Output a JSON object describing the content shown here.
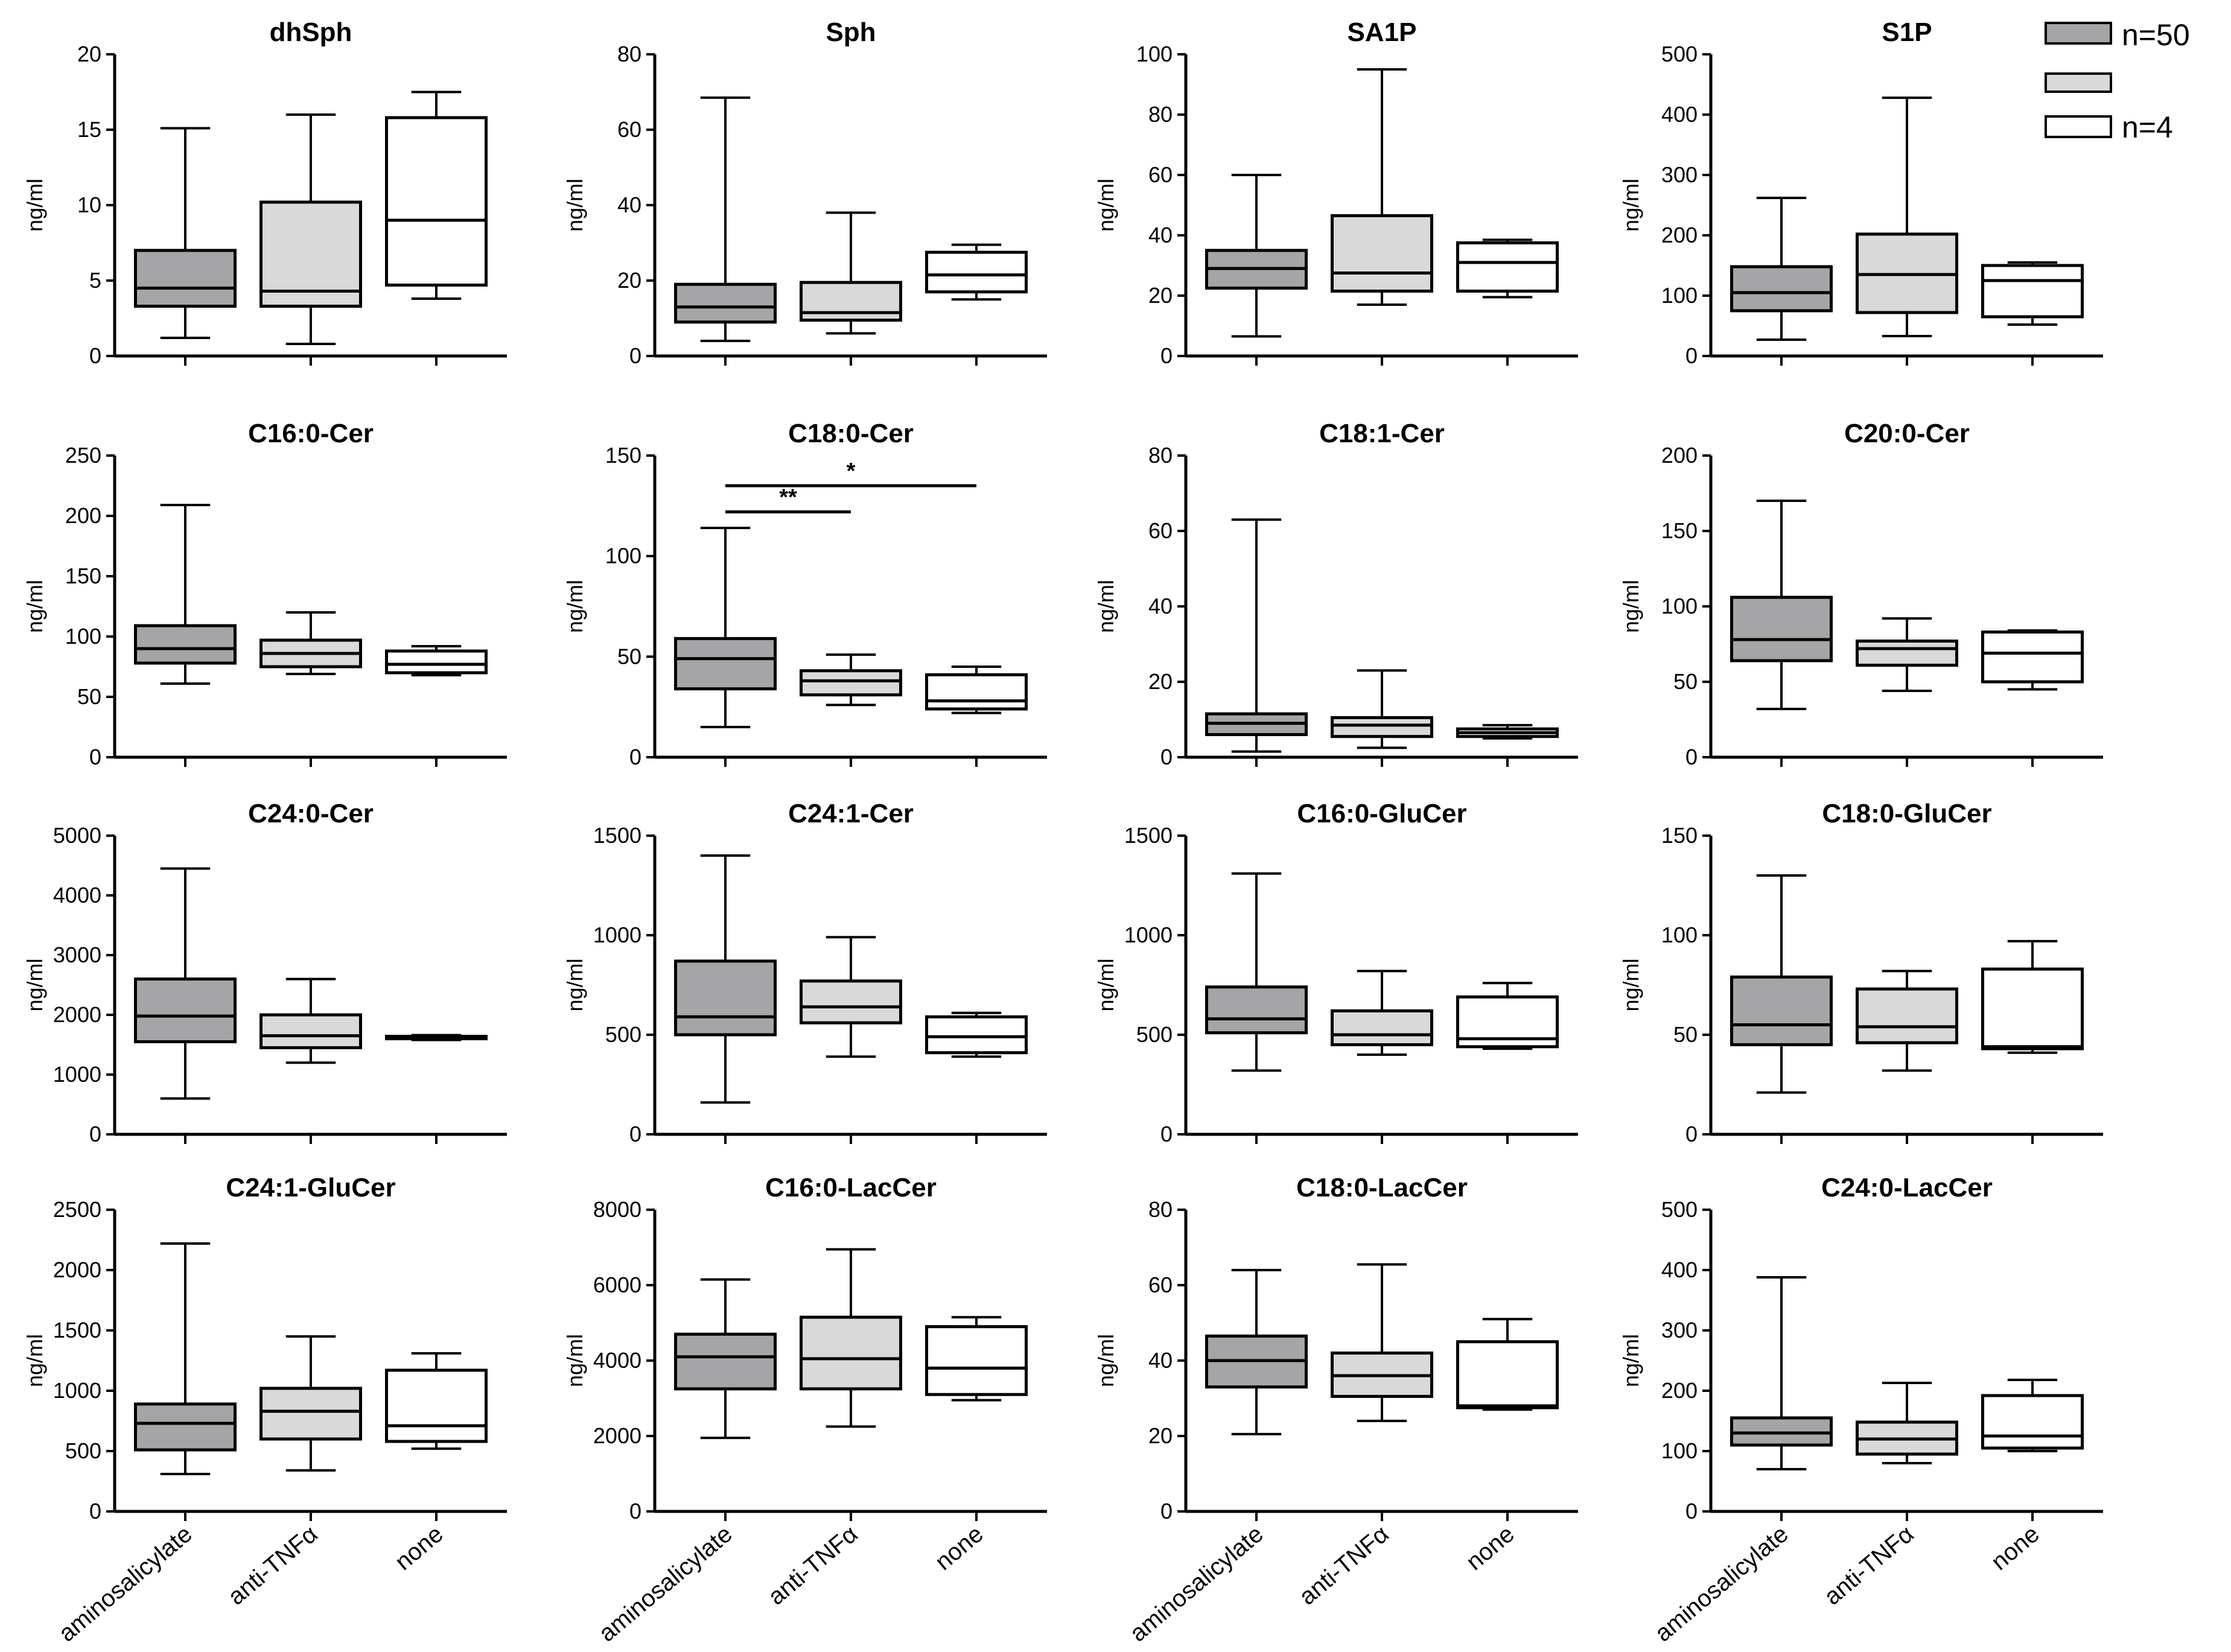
{
  "legend": [
    {
      "label": "n=50",
      "fill": "#a5a5a7"
    },
    {
      "label": "",
      "fill": "#d9d9d9"
    },
    {
      "label": "n=4",
      "fill": "#ffffff"
    }
  ],
  "colors": {
    "aminosalicylate": "#a5a5a7",
    "anti_tnf": "#d9d9d9",
    "none": "#ffffff",
    "stroke": "#000000"
  },
  "chart_data": [
    {
      "type": "box",
      "title": "dhSph",
      "ylabel": "ng/ml",
      "ylim": [
        0,
        20
      ],
      "yticks": [
        0,
        5,
        10,
        15,
        20
      ],
      "categories": [
        "aminosalicylate",
        "anti-TNFα",
        "none"
      ],
      "show_categories": false,
      "boxes": [
        {
          "min": 1.2,
          "q1": 3.3,
          "median": 4.5,
          "q3": 7.0,
          "max": 15.1
        },
        {
          "min": 0.8,
          "q1": 3.3,
          "median": 4.3,
          "q3": 10.2,
          "max": 16.0
        },
        {
          "min": 3.8,
          "q1": 4.7,
          "median": 9.0,
          "q3": 15.8,
          "max": 17.5
        }
      ]
    },
    {
      "type": "box",
      "title": "Sph",
      "ylabel": "ng/ml",
      "ylim": [
        0,
        80
      ],
      "yticks": [
        0,
        20,
        40,
        60,
        80
      ],
      "categories": [
        "aminosalicylate",
        "anti-TNFα",
        "none"
      ],
      "show_categories": false,
      "boxes": [
        {
          "min": 4,
          "q1": 9,
          "median": 13,
          "q3": 19,
          "max": 68.5
        },
        {
          "min": 6,
          "q1": 9.5,
          "median": 11.5,
          "q3": 19.5,
          "max": 38
        },
        {
          "min": 15,
          "q1": 17,
          "median": 21.5,
          "q3": 27.5,
          "max": 29.5
        }
      ]
    },
    {
      "type": "box",
      "title": "SA1P",
      "ylabel": "ng/ml",
      "ylim": [
        0,
        100
      ],
      "yticks": [
        0,
        20,
        40,
        60,
        80,
        100
      ],
      "categories": [
        "aminosalicylate",
        "anti-TNFα",
        "none"
      ],
      "show_categories": false,
      "boxes": [
        {
          "min": 6.5,
          "q1": 22.5,
          "median": 29,
          "q3": 35,
          "max": 60
        },
        {
          "min": 17,
          "q1": 21.5,
          "median": 27.5,
          "q3": 46.5,
          "max": 95
        },
        {
          "min": 19.5,
          "q1": 21.5,
          "median": 31,
          "q3": 37.5,
          "max": 38.5
        }
      ]
    },
    {
      "type": "box",
      "title": "S1P",
      "ylabel": "ng/ml",
      "ylim": [
        0,
        500
      ],
      "yticks": [
        0,
        100,
        200,
        300,
        400,
        500
      ],
      "categories": [
        "aminosalicylate",
        "anti-TNFα",
        "none"
      ],
      "show_categories": false,
      "boxes": [
        {
          "min": 27,
          "q1": 75,
          "median": 105,
          "q3": 148,
          "max": 262
        },
        {
          "min": 33,
          "q1": 72,
          "median": 135,
          "q3": 202,
          "max": 428
        },
        {
          "min": 52,
          "q1": 65,
          "median": 125,
          "q3": 150,
          "max": 155
        }
      ]
    },
    {
      "type": "box",
      "title": "C16:0-Cer",
      "ylabel": "ng/ml",
      "ylim": [
        0,
        250
      ],
      "yticks": [
        0,
        50,
        100,
        150,
        200,
        250
      ],
      "categories": [
        "aminosalicylate",
        "anti-TNFα",
        "none"
      ],
      "show_categories": false,
      "boxes": [
        {
          "min": 61,
          "q1": 78,
          "median": 90,
          "q3": 109,
          "max": 209
        },
        {
          "min": 69,
          "q1": 75,
          "median": 86,
          "q3": 97,
          "max": 120
        },
        {
          "min": 68,
          "q1": 70,
          "median": 77,
          "q3": 88,
          "max": 92
        }
      ]
    },
    {
      "type": "box",
      "title": "C18:0-Cer",
      "ylabel": "ng/ml",
      "ylim": [
        0,
        150
      ],
      "yticks": [
        0,
        50,
        100,
        150
      ],
      "categories": [
        "aminosalicylate",
        "anti-TNFα",
        "none"
      ],
      "show_categories": false,
      "boxes": [
        {
          "min": 15,
          "q1": 34,
          "median": 49,
          "q3": 59,
          "max": 114
        },
        {
          "min": 26,
          "q1": 31,
          "median": 38,
          "q3": 43,
          "max": 51
        },
        {
          "min": 22,
          "q1": 24,
          "median": 28,
          "q3": 41,
          "max": 45
        }
      ],
      "significance": [
        {
          "label": "**",
          "from": 0,
          "to": 1,
          "y": 122
        },
        {
          "label": "*",
          "from": 0,
          "to": 2,
          "y": 135
        }
      ]
    },
    {
      "type": "box",
      "title": "C18:1-Cer",
      "ylabel": "ng/ml",
      "ylim": [
        0,
        80
      ],
      "yticks": [
        0,
        20,
        40,
        60,
        80
      ],
      "categories": [
        "aminosalicylate",
        "anti-TNFα",
        "none"
      ],
      "show_categories": false,
      "boxes": [
        {
          "min": 1.5,
          "q1": 6,
          "median": 9,
          "q3": 11.5,
          "max": 63
        },
        {
          "min": 2.5,
          "q1": 5.5,
          "median": 8.5,
          "q3": 10.5,
          "max": 23
        },
        {
          "min": 5,
          "q1": 5.5,
          "median": 6.5,
          "q3": 7.5,
          "max": 8.5
        }
      ]
    },
    {
      "type": "box",
      "title": "C20:0-Cer",
      "ylabel": "ng/ml",
      "ylim": [
        0,
        200
      ],
      "yticks": [
        0,
        50,
        100,
        150,
        200
      ],
      "categories": [
        "aminosalicylate",
        "anti-TNFα",
        "none"
      ],
      "show_categories": false,
      "boxes": [
        {
          "min": 32,
          "q1": 64,
          "median": 78,
          "q3": 106,
          "max": 170
        },
        {
          "min": 44,
          "q1": 61,
          "median": 72,
          "q3": 77,
          "max": 92
        },
        {
          "min": 45,
          "q1": 50,
          "median": 69,
          "q3": 83,
          "max": 84
        }
      ]
    },
    {
      "type": "box",
      "title": "C24:0-Cer",
      "ylabel": "ng/ml",
      "ylim": [
        0,
        5000
      ],
      "yticks": [
        0,
        1000,
        2000,
        3000,
        4000,
        5000
      ],
      "categories": [
        "aminosalicylate",
        "anti-TNFα",
        "none"
      ],
      "show_categories": false,
      "boxes": [
        {
          "min": 600,
          "q1": 1550,
          "median": 1980,
          "q3": 2600,
          "max": 4450
        },
        {
          "min": 1200,
          "q1": 1450,
          "median": 1650,
          "q3": 2000,
          "max": 2600
        },
        {
          "min": 1580,
          "q1": 1600,
          "median": 1620,
          "q3": 1640,
          "max": 1660
        }
      ]
    },
    {
      "type": "box",
      "title": "C24:1-Cer",
      "ylabel": "ng/ml",
      "ylim": [
        0,
        1500
      ],
      "yticks": [
        0,
        500,
        1000,
        1500
      ],
      "categories": [
        "aminosalicylate",
        "anti-TNFα",
        "none"
      ],
      "show_categories": false,
      "boxes": [
        {
          "min": 160,
          "q1": 500,
          "median": 590,
          "q3": 870,
          "max": 1400
        },
        {
          "min": 390,
          "q1": 560,
          "median": 640,
          "q3": 770,
          "max": 990
        },
        {
          "min": 390,
          "q1": 410,
          "median": 490,
          "q3": 590,
          "max": 610
        }
      ]
    },
    {
      "type": "box",
      "title": "C16:0-GluCer",
      "ylabel": "ng/ml",
      "ylim": [
        0,
        1500
      ],
      "yticks": [
        0,
        500,
        1000,
        1500
      ],
      "categories": [
        "aminosalicylate",
        "anti-TNFα",
        "none"
      ],
      "show_categories": false,
      "boxes": [
        {
          "min": 320,
          "q1": 510,
          "median": 580,
          "q3": 740,
          "max": 1310
        },
        {
          "min": 400,
          "q1": 450,
          "median": 500,
          "q3": 620,
          "max": 820
        },
        {
          "min": 430,
          "q1": 440,
          "median": 480,
          "q3": 690,
          "max": 760
        }
      ]
    },
    {
      "type": "box",
      "title": "C18:0-GluCer",
      "ylabel": "ng/ml",
      "ylim": [
        0,
        150
      ],
      "yticks": [
        0,
        50,
        100,
        150
      ],
      "categories": [
        "aminosalicylate",
        "anti-TNFα",
        "none"
      ],
      "show_categories": false,
      "boxes": [
        {
          "min": 21,
          "q1": 45,
          "median": 55,
          "q3": 79,
          "max": 130
        },
        {
          "min": 32,
          "q1": 46,
          "median": 54,
          "q3": 73,
          "max": 82
        },
        {
          "min": 41,
          "q1": 43,
          "median": 44,
          "q3": 83,
          "max": 97
        }
      ]
    },
    {
      "type": "box",
      "title": "C24:1-GluCer",
      "ylabel": "ng/ml",
      "ylim": [
        0,
        2500
      ],
      "yticks": [
        0,
        500,
        1000,
        1500,
        2000,
        2500
      ],
      "categories": [
        "aminosalicylate",
        "anti-TNFα",
        "none"
      ],
      "show_categories": true,
      "boxes": [
        {
          "min": 310,
          "q1": 510,
          "median": 730,
          "q3": 890,
          "max": 2220
        },
        {
          "min": 340,
          "q1": 600,
          "median": 830,
          "q3": 1020,
          "max": 1450
        },
        {
          "min": 520,
          "q1": 580,
          "median": 710,
          "q3": 1170,
          "max": 1310
        }
      ]
    },
    {
      "type": "box",
      "title": "C16:0-LacCer",
      "ylabel": "ng/ml",
      "ylim": [
        0,
        8000
      ],
      "yticks": [
        0,
        2000,
        4000,
        6000,
        8000
      ],
      "categories": [
        "aminosalicylate",
        "anti-TNFα",
        "none"
      ],
      "show_categories": true,
      "boxes": [
        {
          "min": 1950,
          "q1": 3250,
          "median": 4100,
          "q3": 4700,
          "max": 6150
        },
        {
          "min": 2250,
          "q1": 3250,
          "median": 4050,
          "q3": 5150,
          "max": 6950
        },
        {
          "min": 2950,
          "q1": 3100,
          "median": 3800,
          "q3": 4900,
          "max": 5150
        }
      ]
    },
    {
      "type": "box",
      "title": "C18:0-LacCer",
      "ylabel": "ng/ml",
      "ylim": [
        0,
        80
      ],
      "yticks": [
        0,
        20,
        40,
        60,
        80
      ],
      "categories": [
        "aminosalicylate",
        "anti-TNFα",
        "none"
      ],
      "show_categories": true,
      "boxes": [
        {
          "min": 20.5,
          "q1": 33,
          "median": 40,
          "q3": 46.5,
          "max": 64
        },
        {
          "min": 24,
          "q1": 30.5,
          "median": 36,
          "q3": 42,
          "max": 65.5
        },
        {
          "min": 27,
          "q1": 27.5,
          "median": 28,
          "q3": 45,
          "max": 51
        }
      ]
    },
    {
      "type": "box",
      "title": "C24:0-LacCer",
      "ylabel": "ng/ml",
      "ylim": [
        0,
        500
      ],
      "yticks": [
        0,
        100,
        200,
        300,
        400,
        500
      ],
      "categories": [
        "aminosalicylate",
        "anti-TNFα",
        "none"
      ],
      "show_categories": true,
      "boxes": [
        {
          "min": 70,
          "q1": 110,
          "median": 130,
          "q3": 155,
          "max": 388
        },
        {
          "min": 80,
          "q1": 95,
          "median": 120,
          "q3": 148,
          "max": 213
        },
        {
          "min": 100,
          "q1": 105,
          "median": 125,
          "q3": 192,
          "max": 218
        }
      ]
    }
  ]
}
